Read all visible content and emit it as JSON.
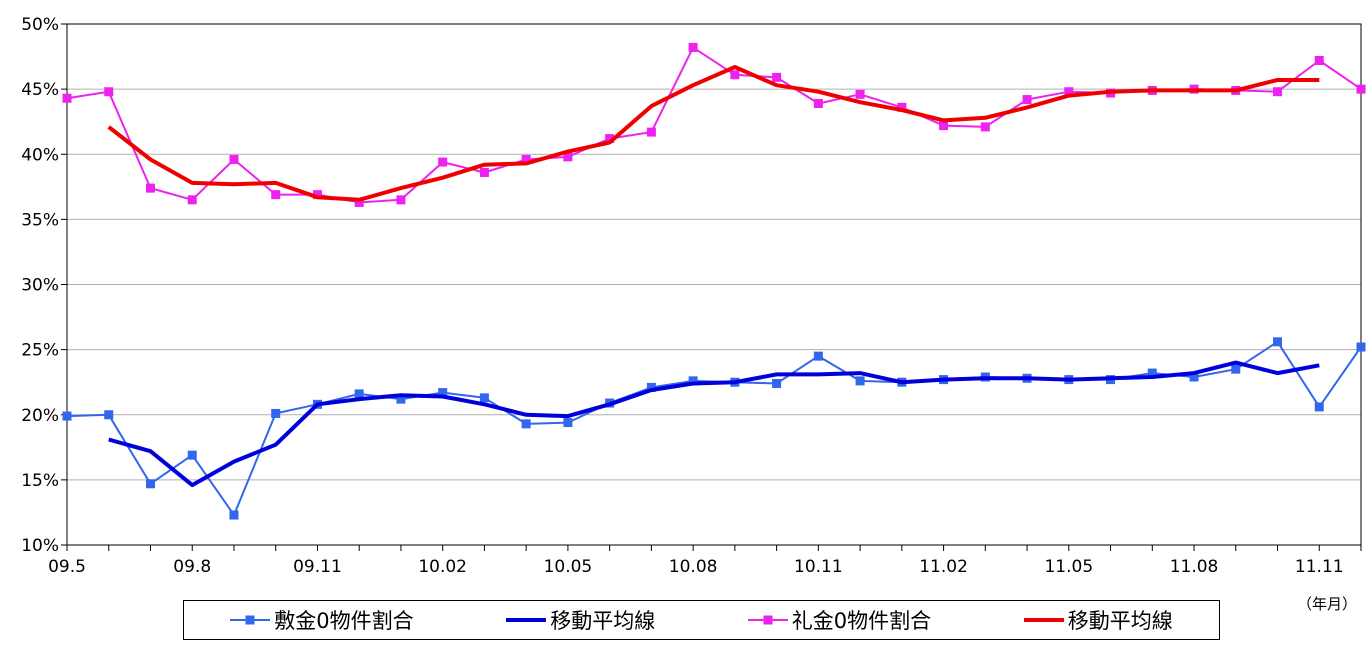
{
  "chart_data": {
    "type": "line",
    "x": [
      "09.5",
      "09.6",
      "09.7",
      "09.8",
      "09.9",
      "09.10",
      "09.11",
      "09.12",
      "10.01",
      "10.02",
      "10.03",
      "10.04",
      "10.05",
      "10.06",
      "10.07",
      "10.08",
      "10.09",
      "10.10",
      "10.11",
      "10.12",
      "11.01",
      "11.02",
      "11.03",
      "11.04",
      "11.05",
      "11.06",
      "11.07",
      "11.08",
      "11.09",
      "11.10",
      "11.11",
      "11.12"
    ],
    "x_tick_labels": [
      "09.5",
      "09.8",
      "09.11",
      "10.02",
      "10.05",
      "10.08",
      "10.11",
      "11.02",
      "11.05",
      "11.08",
      "11.11"
    ],
    "y_tick_labels": [
      "10%",
      "15%",
      "20%",
      "25%",
      "30%",
      "35%",
      "40%",
      "45%",
      "50%"
    ],
    "ylim": [
      10,
      50
    ],
    "y_unit": "%",
    "x_unit_label": "（年月）",
    "grid": "horizontal",
    "legend_position": "bottom",
    "series": [
      {
        "name": "敷金0物件割合",
        "color": "#3366ee",
        "marker": "square",
        "width": 2,
        "values": [
          19.9,
          20.0,
          14.7,
          16.9,
          12.3,
          20.1,
          20.8,
          21.6,
          21.2,
          21.7,
          21.3,
          19.3,
          19.4,
          20.9,
          22.1,
          22.6,
          22.5,
          22.4,
          24.5,
          22.6,
          22.5,
          22.7,
          22.9,
          22.8,
          22.7,
          22.7,
          23.2,
          22.9,
          23.5,
          25.6,
          20.6,
          25.2
        ]
      },
      {
        "name": "移動平均線",
        "color": "#0000dd",
        "marker": "none",
        "width": 4,
        "values": [
          null,
          18.1,
          17.2,
          14.6,
          16.4,
          17.7,
          20.8,
          21.2,
          21.5,
          21.4,
          20.8,
          20.0,
          19.9,
          20.8,
          21.9,
          22.4,
          22.5,
          23.1,
          23.1,
          23.2,
          22.5,
          22.7,
          22.8,
          22.8,
          22.7,
          22.8,
          22.9,
          23.2,
          24.0,
          23.2,
          23.8,
          null
        ]
      },
      {
        "name": "礼金0物件割合",
        "color": "#ee22ee",
        "marker": "square",
        "width": 2,
        "values": [
          44.3,
          44.8,
          37.4,
          36.5,
          39.6,
          36.9,
          36.9,
          36.3,
          36.5,
          39.4,
          38.6,
          39.6,
          39.8,
          41.2,
          41.7,
          48.2,
          46.1,
          45.9,
          43.9,
          44.6,
          43.6,
          42.2,
          42.1,
          44.2,
          44.8,
          44.7,
          44.9,
          45.0,
          44.9,
          44.8,
          47.2,
          45.0
        ]
      },
      {
        "name": "移動平均線",
        "color": "#ee0000",
        "marker": "none",
        "width": 4,
        "values": [
          null,
          42.1,
          39.6,
          37.8,
          37.7,
          37.8,
          36.7,
          36.5,
          37.4,
          38.2,
          39.2,
          39.3,
          40.2,
          40.9,
          43.7,
          45.3,
          46.7,
          45.3,
          44.8,
          44.0,
          43.4,
          42.6,
          42.8,
          43.6,
          44.5,
          44.8,
          44.9,
          44.9,
          44.9,
          45.7,
          45.7,
          null
        ]
      }
    ]
  }
}
